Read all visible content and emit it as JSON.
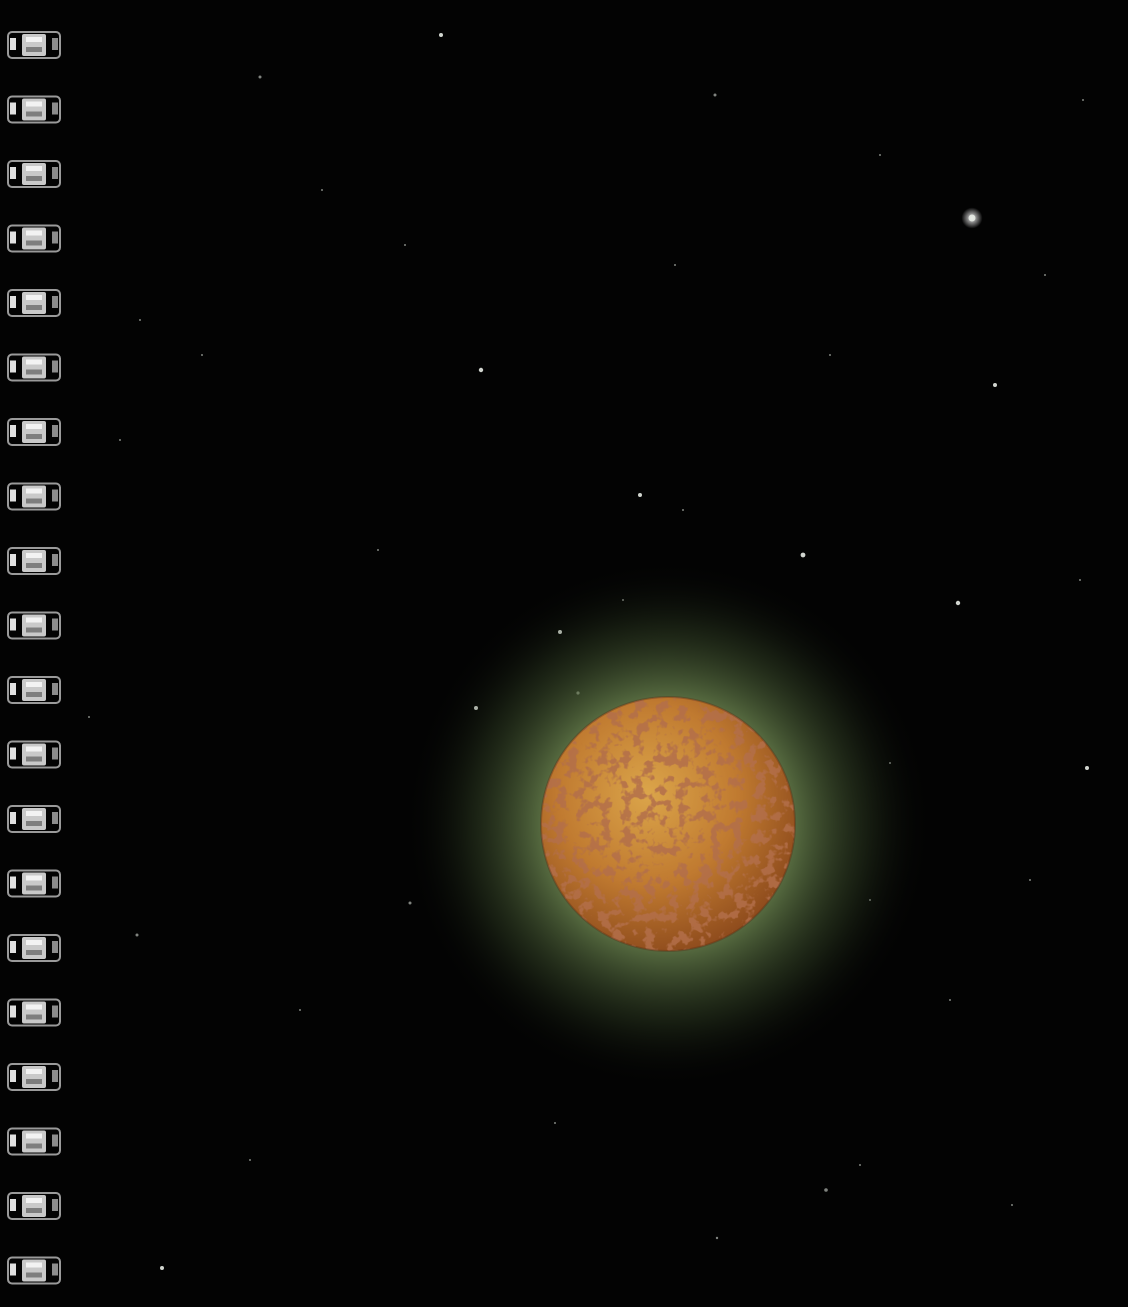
{
  "colors": {
    "background": "#030303",
    "planet_light": "#d39a3a",
    "planet_mid": "#b8742c",
    "planet_dark": "#8a3c1a",
    "halo": "#7d9a5c",
    "binding_metal": "#c9c9c9"
  },
  "binding": {
    "type": "spiral-coil",
    "ring_count": 20
  },
  "icons": [
    "spiral-binding-icon",
    "planet-icon",
    "star-icon"
  ]
}
